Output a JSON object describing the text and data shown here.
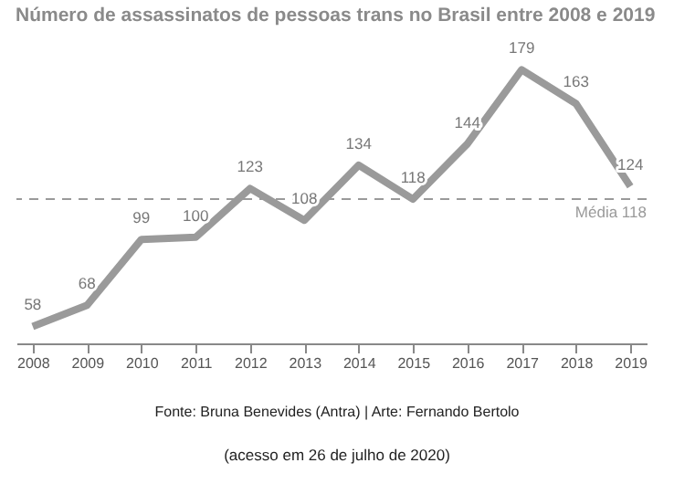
{
  "chart_data": {
    "type": "line",
    "title": "Número de assassinatos de pessoas trans no Brasil entre 2008 e 2019",
    "categories": [
      "2008",
      "2009",
      "2010",
      "2011",
      "2012",
      "2013",
      "2014",
      "2015",
      "2016",
      "2017",
      "2018",
      "2019"
    ],
    "series": [
      {
        "color": "#9a9a9a",
        "values": [
          58,
          68,
          99,
          100,
          123,
          108,
          134,
          118,
          144,
          179,
          163,
          124
        ]
      }
    ],
    "data_labels": true,
    "tick_labels": "x",
    "grid": false,
    "marker": "none",
    "line_style": "solid",
    "ref_lines": [
      {
        "axis": "y",
        "value": 118,
        "label": "Média 118",
        "color": "#9a9a9a",
        "line_style": "dashed"
      }
    ],
    "annotations": [
      "Fonte: Bruna Benevides (Antra) | Arte: Fernando Bertolo",
      "(acesso em 26 de julho de 2020)"
    ]
  }
}
